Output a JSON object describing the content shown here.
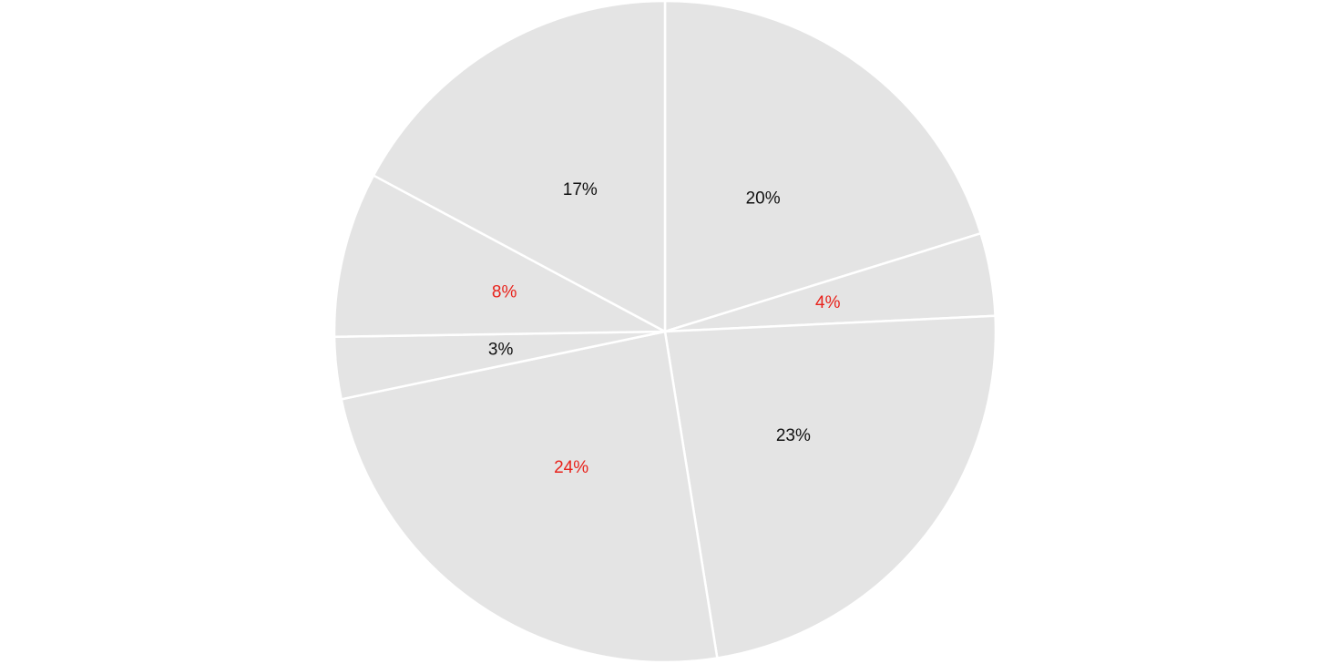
{
  "chart_data": {
    "type": "pie",
    "start_angle_deg": 0,
    "direction": "clockwise",
    "slice_fill": "#e4e4e4",
    "slice_stroke": "#ffffff",
    "slices": [
      {
        "label": "20%",
        "value": 20,
        "label_color": "#111111"
      },
      {
        "label": "4%",
        "value": 4,
        "label_color": "#e8231c"
      },
      {
        "label": "23%",
        "value": 23,
        "label_color": "#111111"
      },
      {
        "label": "24%",
        "value": 24,
        "label_color": "#e8231c"
      },
      {
        "label": "3%",
        "value": 3,
        "label_color": "#111111"
      },
      {
        "label": "8%",
        "value": 8,
        "label_color": "#e8231c"
      },
      {
        "label": "17%",
        "value": 17,
        "label_color": "#111111"
      }
    ]
  }
}
